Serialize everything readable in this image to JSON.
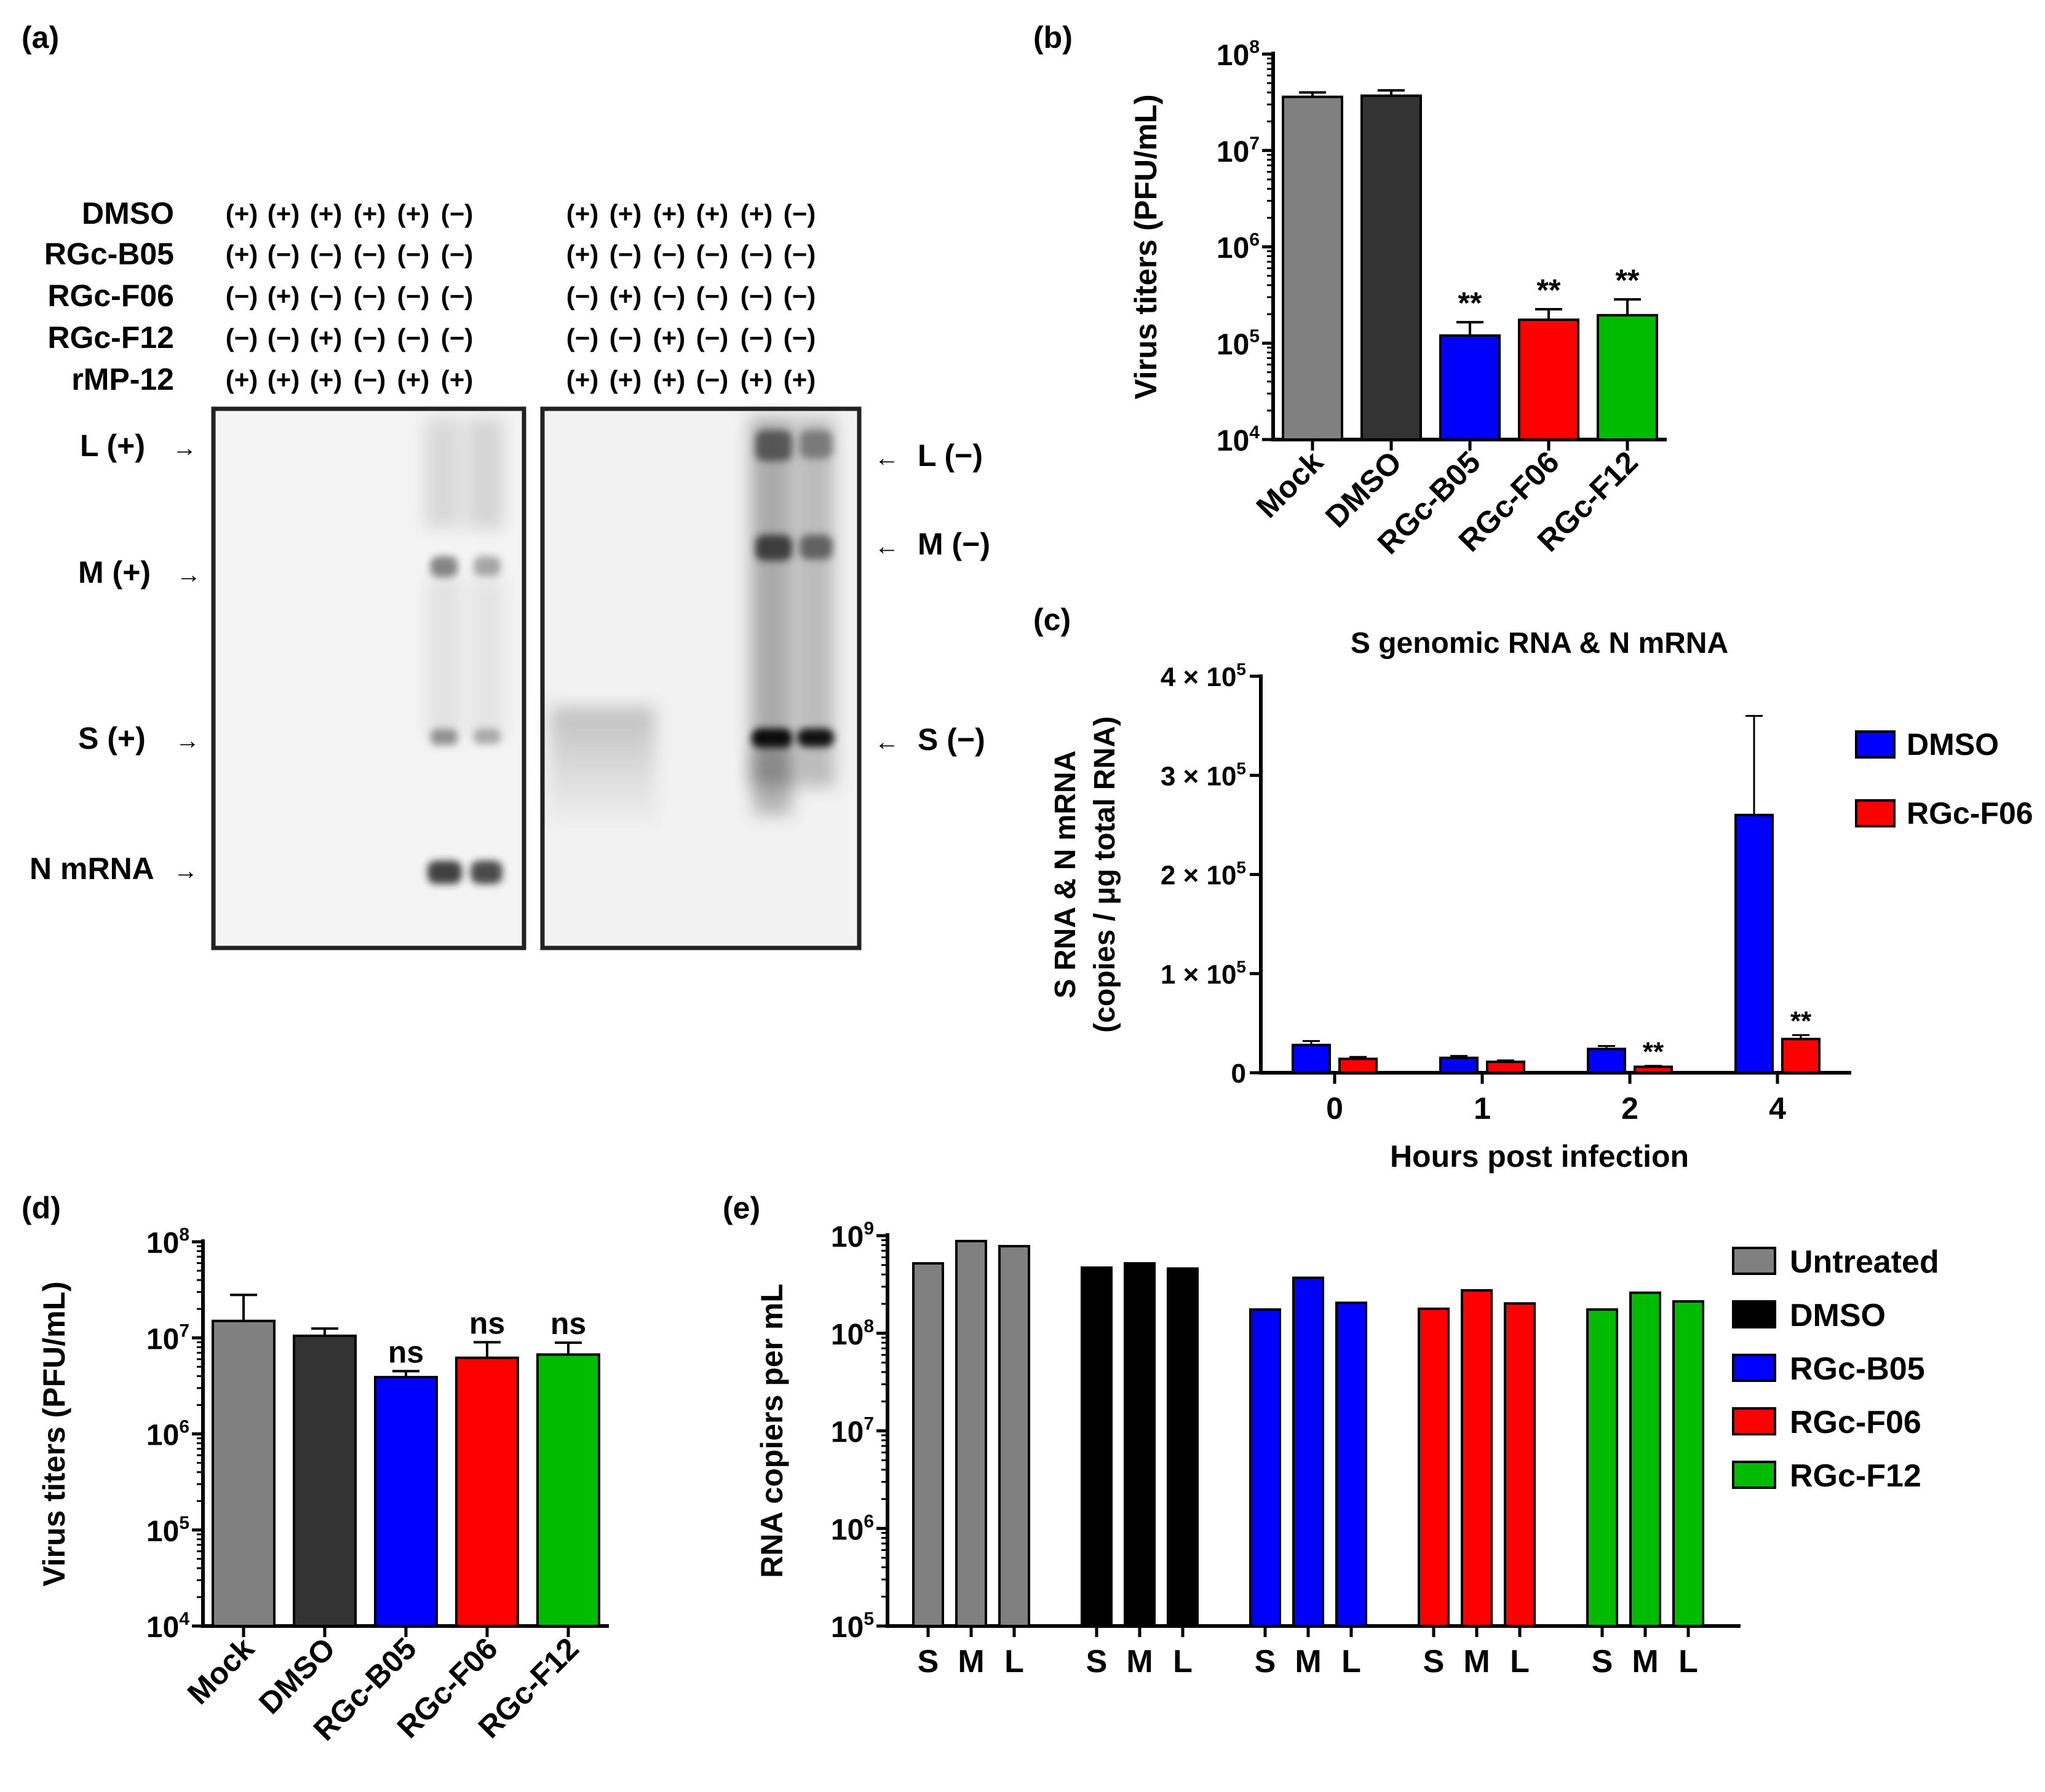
{
  "panel_labels": {
    "a": "(a)",
    "b": "(b)",
    "c": "(c)",
    "d": "(d)",
    "e": "(e)"
  },
  "blot": {
    "row_names": [
      "DMSO",
      "RGc-B05",
      "RGc-F06",
      "RGc-F12",
      "rMP-12"
    ],
    "left_rows": [
      [
        "(+)",
        "(+)",
        "(+)",
        "(+)",
        "(+)",
        "(−)"
      ],
      [
        "(+)",
        "(−)",
        "(−)",
        "(−)",
        "(−)",
        "(−)"
      ],
      [
        "(−)",
        "(+)",
        "(−)",
        "(−)",
        "(−)",
        "(−)"
      ],
      [
        "(−)",
        "(−)",
        "(+)",
        "(−)",
        "(−)",
        "(−)"
      ],
      [
        "(+)",
        "(+)",
        "(+)",
        "(−)",
        "(+)",
        "(+)"
      ]
    ],
    "right_rows": [
      [
        "(+)",
        "(+)",
        "(+)",
        "(+)",
        "(+)",
        "(−)"
      ],
      [
        "(+)",
        "(−)",
        "(−)",
        "(−)",
        "(−)",
        "(−)"
      ],
      [
        "(−)",
        "(+)",
        "(−)",
        "(−)",
        "(−)",
        "(−)"
      ],
      [
        "(−)",
        "(−)",
        "(+)",
        "(−)",
        "(−)",
        "(−)"
      ],
      [
        "(+)",
        "(+)",
        "(+)",
        "(−)",
        "(+)",
        "(+)"
      ]
    ],
    "left_markers": [
      "L (+)",
      "M (+)",
      "S (+)",
      "N mRNA"
    ],
    "right_markers": [
      "L (−)",
      "M (−)",
      "S (−)"
    ],
    "arrow_right": "→",
    "arrow_left": "←"
  },
  "chart_data": [
    {
      "id": "b",
      "type": "bar",
      "yscale": "log",
      "ylabel": "Virus titers (PFU/mL)",
      "ylim": [
        10000,
        100000000
      ],
      "yticks": [
        {
          "value": 10000,
          "base": "10",
          "exp": "4"
        },
        {
          "value": 100000,
          "base": "10",
          "exp": "5"
        },
        {
          "value": 1000000,
          "base": "10",
          "exp": "6"
        },
        {
          "value": 10000000,
          "base": "10",
          "exp": "7"
        },
        {
          "value": 100000000,
          "base": "10",
          "exp": "8"
        }
      ],
      "categories": [
        "Mock",
        "DMSO",
        "RGc-B05",
        "RGc-F06",
        "RGc-F12"
      ],
      "values": [
        36000000,
        37000000,
        120000,
        175000,
        195000
      ],
      "errors": [
        4000000,
        5000000,
        45000,
        50000,
        90000
      ],
      "colors": [
        "#808080",
        "#333333",
        "#0000ff",
        "#ff0000",
        "#00bb00"
      ],
      "annotations": [
        "",
        "",
        "**",
        "**",
        "**"
      ]
    },
    {
      "id": "c",
      "type": "bar",
      "title": "S genomic RNA & N mRNA",
      "xlabel": "Hours post infection",
      "ylabel_lines": [
        "S RNA & N mRNA",
        "(copies / μg total RNA)"
      ],
      "ylim": [
        0,
        400000
      ],
      "yticks": [
        {
          "value": 0,
          "text": "0"
        },
        {
          "value": 100000,
          "text": "1 × 10",
          "exp": "5"
        },
        {
          "value": 200000,
          "text": "2 × 10",
          "exp": "5"
        },
        {
          "value": 300000,
          "text": "3 × 10",
          "exp": "5"
        },
        {
          "value": 400000,
          "text": "4 × 10",
          "exp": "5"
        }
      ],
      "categories": [
        "0",
        "1",
        "2",
        "4"
      ],
      "series": [
        {
          "name": "DMSO",
          "color": "#0000ff",
          "values": [
            28000,
            15000,
            24000,
            260000
          ],
          "errors": [
            4000,
            2000,
            3000,
            100000
          ],
          "annotations": [
            "",
            "",
            "",
            ""
          ]
        },
        {
          "name": "RGc-F06",
          "color": "#ff0000",
          "values": [
            14000,
            11000,
            6000,
            34000
          ],
          "errors": [
            2000,
            1500,
            1000,
            4000
          ],
          "annotations": [
            "",
            "",
            "**",
            "**"
          ]
        }
      ]
    },
    {
      "id": "d",
      "type": "bar",
      "yscale": "log",
      "ylabel": "Virus titers (PFU/mL)",
      "ylim": [
        10000,
        100000000
      ],
      "yticks": [
        {
          "value": 10000,
          "base": "10",
          "exp": "4"
        },
        {
          "value": 100000,
          "base": "10",
          "exp": "5"
        },
        {
          "value": 1000000,
          "base": "10",
          "exp": "6"
        },
        {
          "value": 10000000,
          "base": "10",
          "exp": "7"
        },
        {
          "value": 100000000,
          "base": "10",
          "exp": "8"
        }
      ],
      "categories": [
        "Mock",
        "DMSO",
        "RGc-B05",
        "RGc-F06",
        "RGc-F12"
      ],
      "values": [
        15000000,
        10500000,
        3900000,
        6200000,
        6700000
      ],
      "errors": [
        13000000,
        2000000,
        600000,
        2800000,
        2200000
      ],
      "colors": [
        "#808080",
        "#333333",
        "#0000ff",
        "#ff0000",
        "#00bb00"
      ],
      "annotations": [
        "",
        "",
        "ns",
        "ns",
        "ns"
      ]
    },
    {
      "id": "e",
      "type": "bar",
      "yscale": "log",
      "ylabel": "RNA copiers per mL",
      "ylim": [
        100000,
        1000000000
      ],
      "yticks": [
        {
          "value": 100000,
          "base": "10",
          "exp": "5"
        },
        {
          "value": 1000000,
          "base": "10",
          "exp": "6"
        },
        {
          "value": 10000000,
          "base": "10",
          "exp": "7"
        },
        {
          "value": 100000000,
          "base": "10",
          "exp": "8"
        },
        {
          "value": 1000000000,
          "base": "10",
          "exp": "9"
        }
      ],
      "segments": [
        "S",
        "M",
        "L"
      ],
      "groups": [
        {
          "name": "Untreated",
          "color": "#808080",
          "values": [
            520000000,
            880000000,
            780000000
          ]
        },
        {
          "name": "DMSO",
          "color": "#000000",
          "values": [
            470000000,
            520000000,
            460000000
          ]
        },
        {
          "name": "RGc-B05",
          "color": "#0000ff",
          "values": [
            175000000,
            370000000,
            205000000
          ]
        },
        {
          "name": "RGc-F06",
          "color": "#ff0000",
          "values": [
            178000000,
            275000000,
            202000000
          ]
        },
        {
          "name": "RGc-F12",
          "color": "#00bb00",
          "values": [
            175000000,
            260000000,
            212000000
          ]
        }
      ]
    }
  ]
}
